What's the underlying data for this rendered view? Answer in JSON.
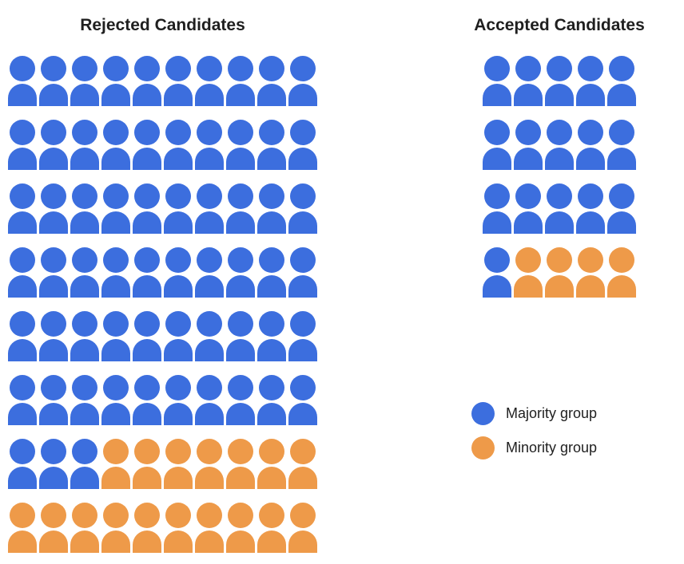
{
  "chart_data": {
    "type": "pictogram",
    "title": "",
    "icon": "person",
    "colors": {
      "majority": "#3c6ede",
      "minority": "#ee9a49"
    },
    "row_key": {
      "M": "majority",
      "m": "minority"
    },
    "panels": [
      {
        "title": "Rejected Candidates",
        "columns": 10,
        "total": 80,
        "counts": {
          "majority": 63,
          "minority": 17
        },
        "rows": [
          "MMMMMMMMMM",
          "MMMMMMMMMM",
          "MMMMMMMMMM",
          "MMMMMMMMMM",
          "MMMMMMMMMM",
          "MMMMMMMMMM",
          "MMMmmmmmmm",
          "mmmmmmmmmm"
        ]
      },
      {
        "title": "Accepted Candidates",
        "columns": 5,
        "total": 20,
        "counts": {
          "majority": 16,
          "minority": 4
        },
        "rows": [
          "MMMMM",
          "MMMMM",
          "MMMMM",
          "Mmmmm"
        ]
      }
    ],
    "legend": [
      {
        "label": "Majority group",
        "color_key": "majority"
      },
      {
        "label": "Minority group",
        "color_key": "minority"
      }
    ],
    "legend_position": "bottom-right"
  }
}
